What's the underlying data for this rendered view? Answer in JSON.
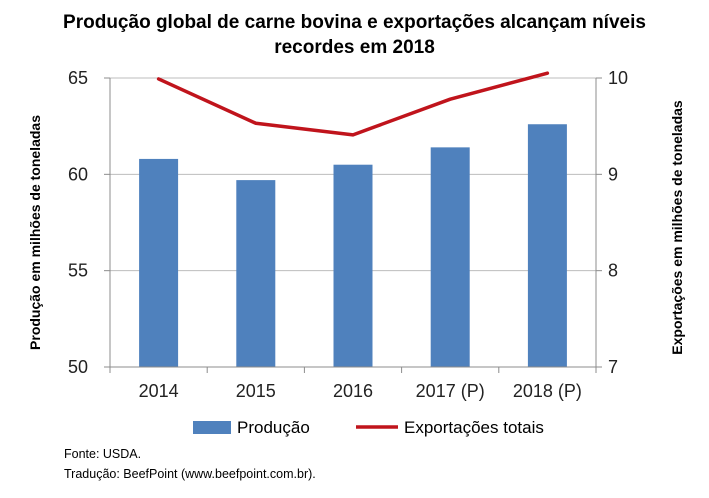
{
  "chart_data": {
    "type": "bar+line",
    "title_line1": "Produção global de carne bovina e exportações alcançam níveis",
    "title_line2": "recordes em 2018",
    "categories": [
      "2014",
      "2015",
      "2016",
      "2017",
      "2018"
    ],
    "category_suffixes": [
      "",
      "",
      "",
      "(P)",
      "(P)"
    ],
    "y_left": {
      "label": "Produção em milhões de toneladas",
      "ylim": [
        50,
        65
      ],
      "ticks": [
        "50",
        "55",
        "60",
        "65"
      ]
    },
    "y_right": {
      "label": "Exportações em milhões de toneladas",
      "ylim": [
        7,
        10
      ],
      "ticks": [
        "7",
        "8",
        "9",
        "10"
      ]
    },
    "series": [
      {
        "name": "Produção",
        "type": "bar",
        "axis": "left",
        "color": "#4f81bd",
        "values": [
          60.8,
          59.7,
          60.5,
          61.4,
          62.6
        ]
      },
      {
        "name": "Exportações totais",
        "type": "line",
        "axis": "right",
        "color": "#c0141c",
        "values": [
          9.99,
          9.53,
          9.41,
          9.78,
          10.05
        ]
      }
    ],
    "grid": "horizontal",
    "legend": "bottom"
  },
  "footer": {
    "source": "Fonte: USDA.",
    "translation": "Tradução: BeefPoint (www.beefpoint.com.br)."
  }
}
